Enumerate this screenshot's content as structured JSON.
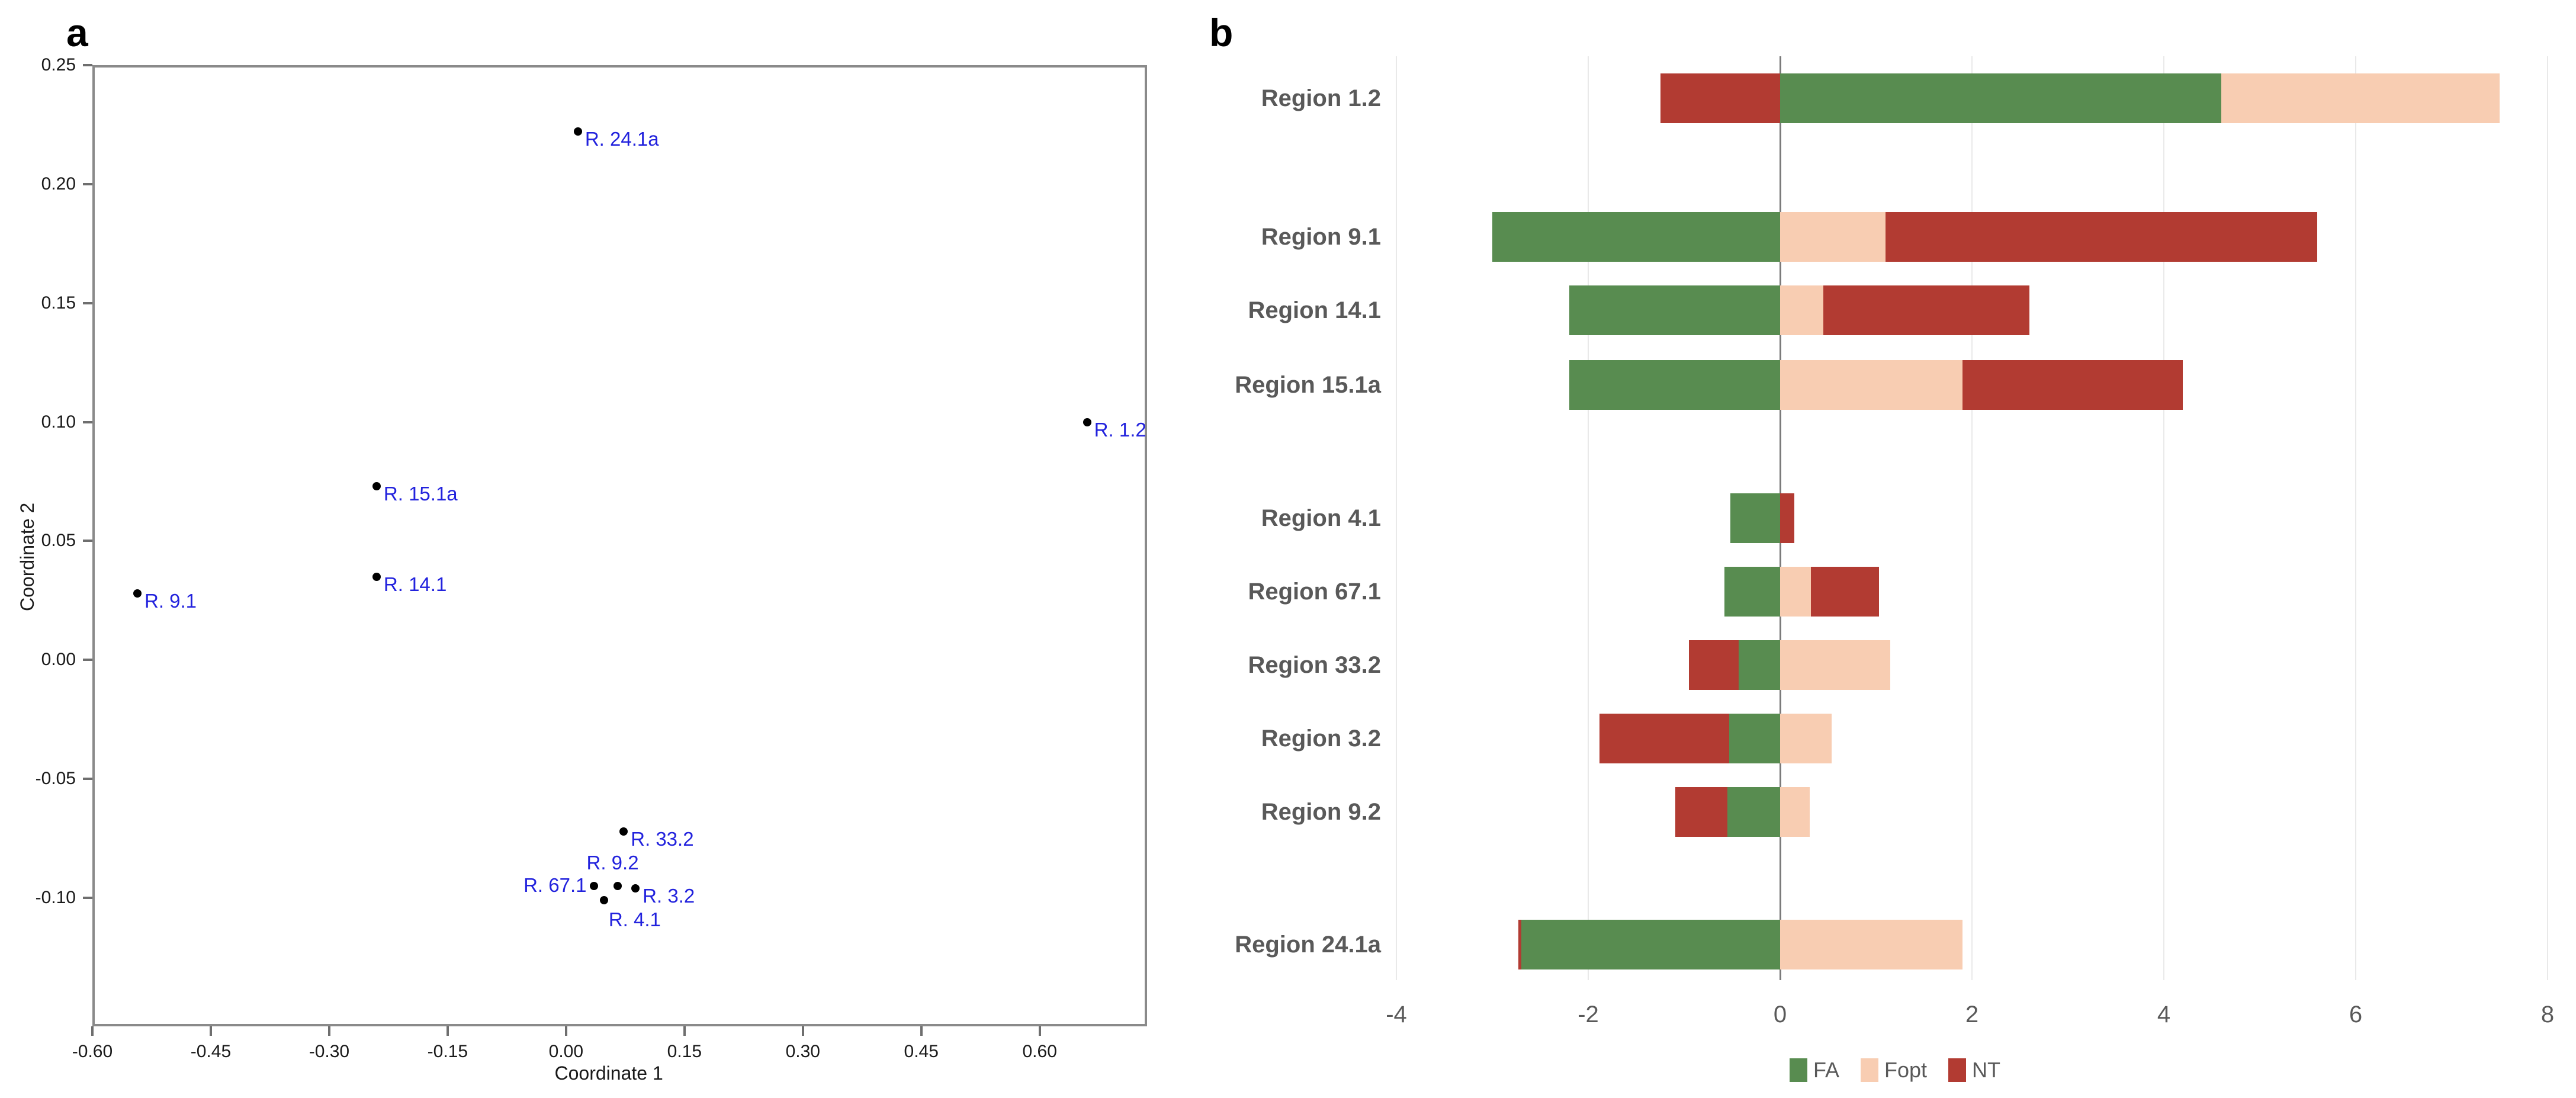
{
  "figure": {
    "panel_a_letter": "a",
    "panel_b_letter": "b"
  },
  "chart_data": [
    {
      "type": "scatter",
      "panel": "a",
      "title": "",
      "xlabel": "Coordinate 1",
      "ylabel": "Coordinate 2",
      "xlim": [
        -0.6,
        0.736
      ],
      "ylim": [
        -0.154,
        0.25
      ],
      "grid": false,
      "x_ticks": [
        {
          "v": -0.6,
          "label": "-0.60"
        },
        {
          "v": -0.45,
          "label": "-0.45"
        },
        {
          "v": -0.3,
          "label": "-0.30"
        },
        {
          "v": -0.15,
          "label": "-0.15"
        },
        {
          "v": 0.0,
          "label": "0.00"
        },
        {
          "v": 0.15,
          "label": "0.15"
        },
        {
          "v": 0.3,
          "label": "0.30"
        },
        {
          "v": 0.45,
          "label": "0.45"
        },
        {
          "v": 0.6,
          "label": "0.60"
        }
      ],
      "y_ticks": [
        {
          "v": 0.25,
          "label": "0.25"
        },
        {
          "v": 0.2,
          "label": "0.20"
        },
        {
          "v": 0.15,
          "label": "0.15"
        },
        {
          "v": 0.1,
          "label": "0.10"
        },
        {
          "v": 0.05,
          "label": "0.05"
        },
        {
          "v": 0.0,
          "label": "0.00"
        },
        {
          "v": -0.05,
          "label": "-0.05"
        },
        {
          "v": -0.1,
          "label": "-0.10"
        }
      ],
      "points": [
        {
          "label": "R. 24.1a",
          "x": 0.015,
          "y": 0.222,
          "label_side": "right"
        },
        {
          "label": "R. 1.2",
          "x": 0.66,
          "y": 0.1,
          "label_side": "right"
        },
        {
          "label": "R. 15.1a",
          "x": -0.24,
          "y": 0.073,
          "label_side": "right"
        },
        {
          "label": "R. 14.1",
          "x": -0.24,
          "y": 0.035,
          "label_side": "right"
        },
        {
          "label": "R. 9.1",
          "x": -0.543,
          "y": 0.028,
          "label_side": "right"
        },
        {
          "label": "R. 33.2",
          "x": 0.073,
          "y": -0.072,
          "label_side": "right"
        },
        {
          "label": "R. 9.2",
          "x": 0.065,
          "y": -0.095,
          "label_side": "above"
        },
        {
          "label": "R. 67.1",
          "x": 0.035,
          "y": -0.095,
          "label_side": "left"
        },
        {
          "label": "R. 3.2",
          "x": 0.088,
          "y": -0.096,
          "label_side": "right"
        },
        {
          "label": "R. 4.1",
          "x": 0.048,
          "y": -0.101,
          "label_side": "below"
        }
      ],
      "colors": {
        "point": "#000000",
        "point_label": "#2222dd",
        "axis": "#8a8a8a",
        "tick": "#6e6e6e",
        "tick_text": "#1a1a1a"
      }
    },
    {
      "type": "bar",
      "panel": "b",
      "orientation": "horizontal",
      "stacking": "diverging",
      "title": "",
      "xlim": [
        -4.7,
        8.3
      ],
      "x_ticks": [
        {
          "v": -4,
          "label": "-4"
        },
        {
          "v": -2,
          "label": "-2"
        },
        {
          "v": 0,
          "label": "0"
        },
        {
          "v": 2,
          "label": "2"
        },
        {
          "v": 4,
          "label": "4"
        },
        {
          "v": 6,
          "label": "6"
        },
        {
          "v": 8,
          "label": "8"
        }
      ],
      "legend": [
        {
          "name": "FA",
          "color": "#588C50"
        },
        {
          "name": "Fopt",
          "color": "#F8CDB2"
        },
        {
          "name": "NT",
          "color": "#B23B32"
        }
      ],
      "legend_position": "bottom-center",
      "rows": [
        {
          "label": "Region 1.2",
          "segments": [
            {
              "series": "NT",
              "from": -1.25,
              "to": 0
            },
            {
              "series": "FA",
              "from": 0,
              "to": 4.6
            },
            {
              "series": "Fopt",
              "from": 4.6,
              "to": 7.5
            }
          ]
        },
        {
          "label": "Region 9.1",
          "segments": [
            {
              "series": "FA",
              "from": -3.0,
              "to": 0
            },
            {
              "series": "Fopt",
              "from": 0,
              "to": 1.1
            },
            {
              "series": "NT",
              "from": 1.1,
              "to": 5.6
            }
          ]
        },
        {
          "label": "Region 14.1",
          "segments": [
            {
              "series": "FA",
              "from": -2.2,
              "to": 0
            },
            {
              "series": "Fopt",
              "from": 0,
              "to": 0.45
            },
            {
              "series": "NT",
              "from": 0.45,
              "to": 2.6
            }
          ]
        },
        {
          "label": "Region 15.1a",
          "segments": [
            {
              "series": "FA",
              "from": -2.2,
              "to": 0
            },
            {
              "series": "Fopt",
              "from": 0,
              "to": 1.9
            },
            {
              "series": "NT",
              "from": 1.9,
              "to": 4.2
            }
          ]
        },
        {
          "label": "Region 4.1",
          "segments": [
            {
              "series": "FA",
              "from": -0.52,
              "to": 0
            },
            {
              "series": "NT",
              "from": 0,
              "to": 0.15
            }
          ]
        },
        {
          "label": "Region 67.1",
          "segments": [
            {
              "series": "FA",
              "from": -0.58,
              "to": 0
            },
            {
              "series": "Fopt",
              "from": 0,
              "to": 0.32
            },
            {
              "series": "NT",
              "from": 0.32,
              "to": 1.03
            }
          ]
        },
        {
          "label": "Region 33.2",
          "segments": [
            {
              "series": "NT",
              "from": -0.95,
              "to": -0.43
            },
            {
              "series": "FA",
              "from": -0.43,
              "to": 0
            },
            {
              "series": "Fopt",
              "from": 0,
              "to": 1.15
            }
          ]
        },
        {
          "label": "Region 3.2",
          "segments": [
            {
              "series": "NT",
              "from": -1.88,
              "to": -0.53
            },
            {
              "series": "FA",
              "from": -0.53,
              "to": 0
            },
            {
              "series": "Fopt",
              "from": 0,
              "to": 0.54
            }
          ]
        },
        {
          "label": "Region 9.2",
          "segments": [
            {
              "series": "NT",
              "from": -1.09,
              "to": -0.55
            },
            {
              "series": "FA",
              "from": -0.55,
              "to": 0
            },
            {
              "series": "Fopt",
              "from": 0,
              "to": 0.31
            }
          ]
        },
        {
          "label": "Region 24.1a",
          "segments": [
            {
              "series": "NT",
              "from": -2.73,
              "to": -2.7
            },
            {
              "series": "FA",
              "from": -2.7,
              "to": 0
            },
            {
              "series": "Fopt",
              "from": 0,
              "to": 1.9
            }
          ]
        }
      ],
      "colors": {
        "grid": "#e9e9e9",
        "zero_line": "#7a7a7a",
        "tick_text": "#595959",
        "row_label": "#595959"
      }
    }
  ]
}
